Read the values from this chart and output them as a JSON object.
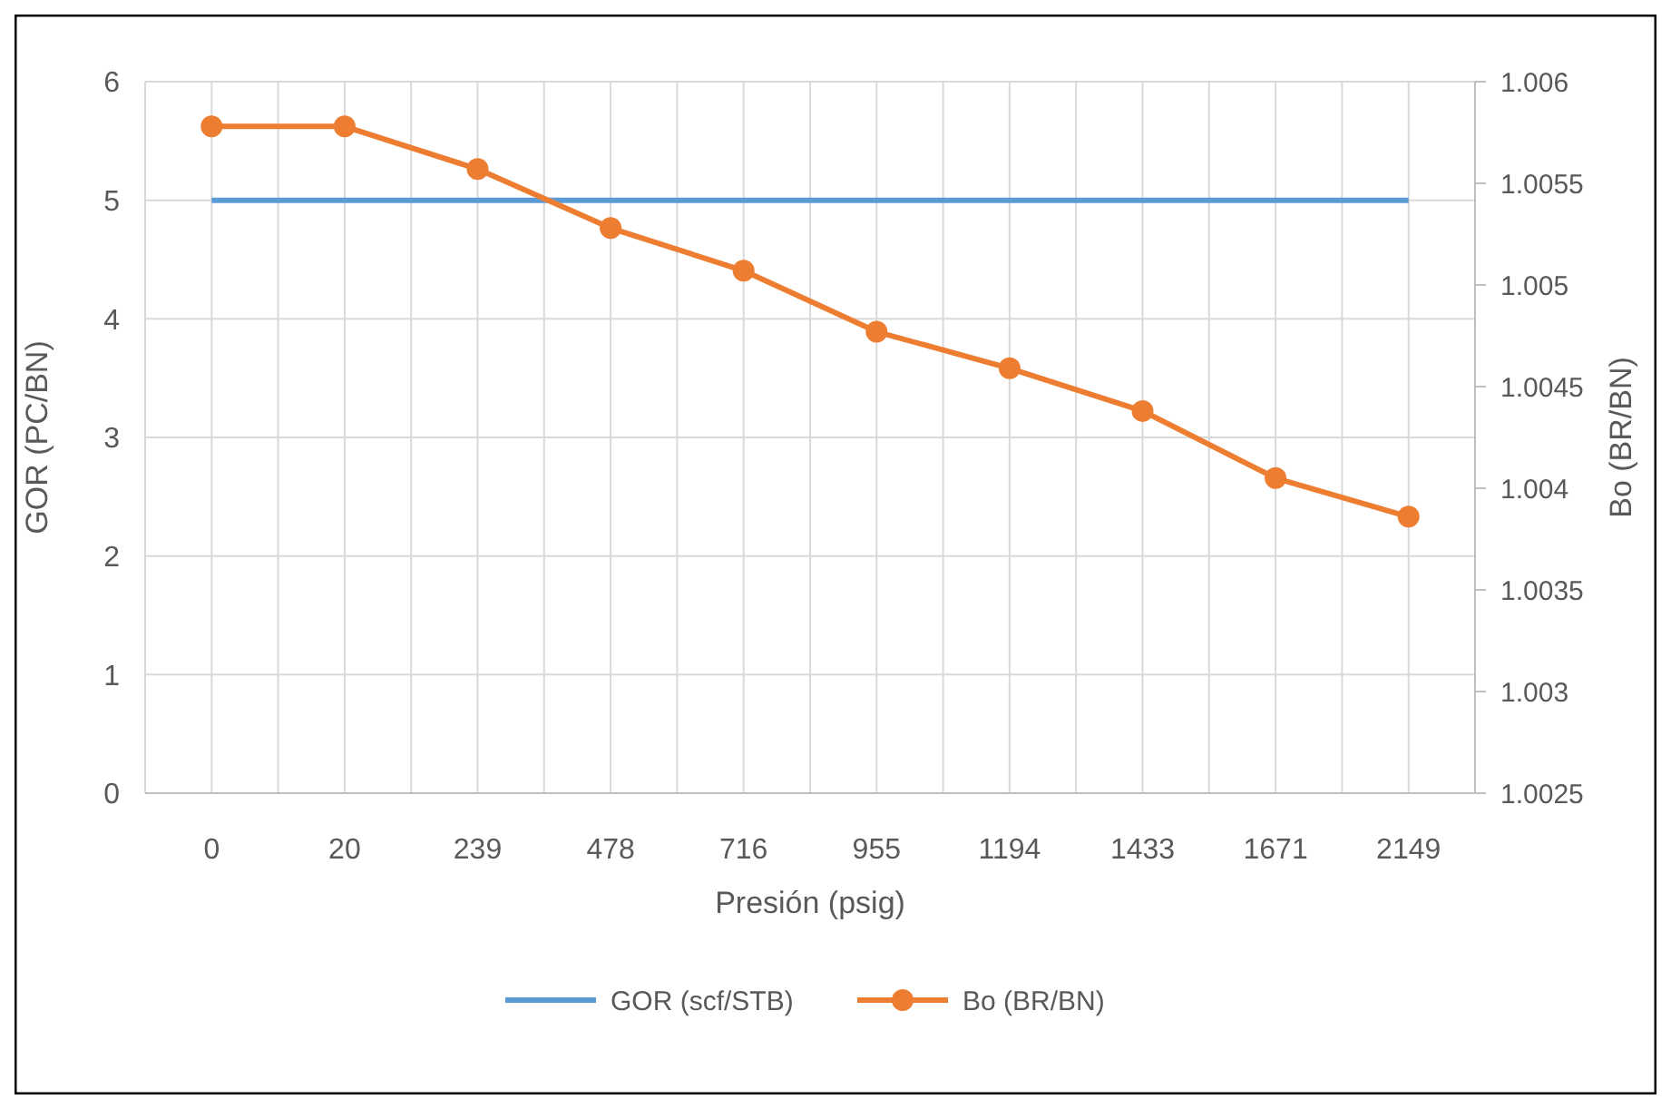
{
  "chart_data": {
    "type": "line",
    "categories": [
      "0",
      "20",
      "239",
      "478",
      "716",
      "955",
      "1194",
      "1433",
      "1671",
      "2149"
    ],
    "xlabel": "Presión (psig)",
    "ylabel": "GOR (PC/BN)",
    "y2label": "Bo (BR/BN)",
    "ylim": [
      0,
      6
    ],
    "yticks": [
      0,
      1,
      2,
      3,
      4,
      5,
      6
    ],
    "y2lim": [
      1.0025,
      1.006
    ],
    "y2ticks": [
      1.0025,
      1.003,
      1.0035,
      1.004,
      1.0045,
      1.005,
      1.0055,
      1.006
    ],
    "grid": true,
    "legend": "bottom",
    "series": [
      {
        "name": "GOR (scf/STB)",
        "color": "#5b9bd5",
        "marker": "none",
        "values": [
          5,
          5,
          5,
          5,
          5,
          5,
          5,
          5,
          5,
          5
        ]
      },
      {
        "name": "Bo (BR/BN)",
        "color": "#ed7d31",
        "marker": "circle",
        "axis": "y2",
        "values": [
          1.00578,
          1.00578,
          1.00557,
          1.00528,
          1.00507,
          1.00477,
          1.00459,
          1.00438,
          1.00405,
          1.00386
        ]
      }
    ]
  }
}
